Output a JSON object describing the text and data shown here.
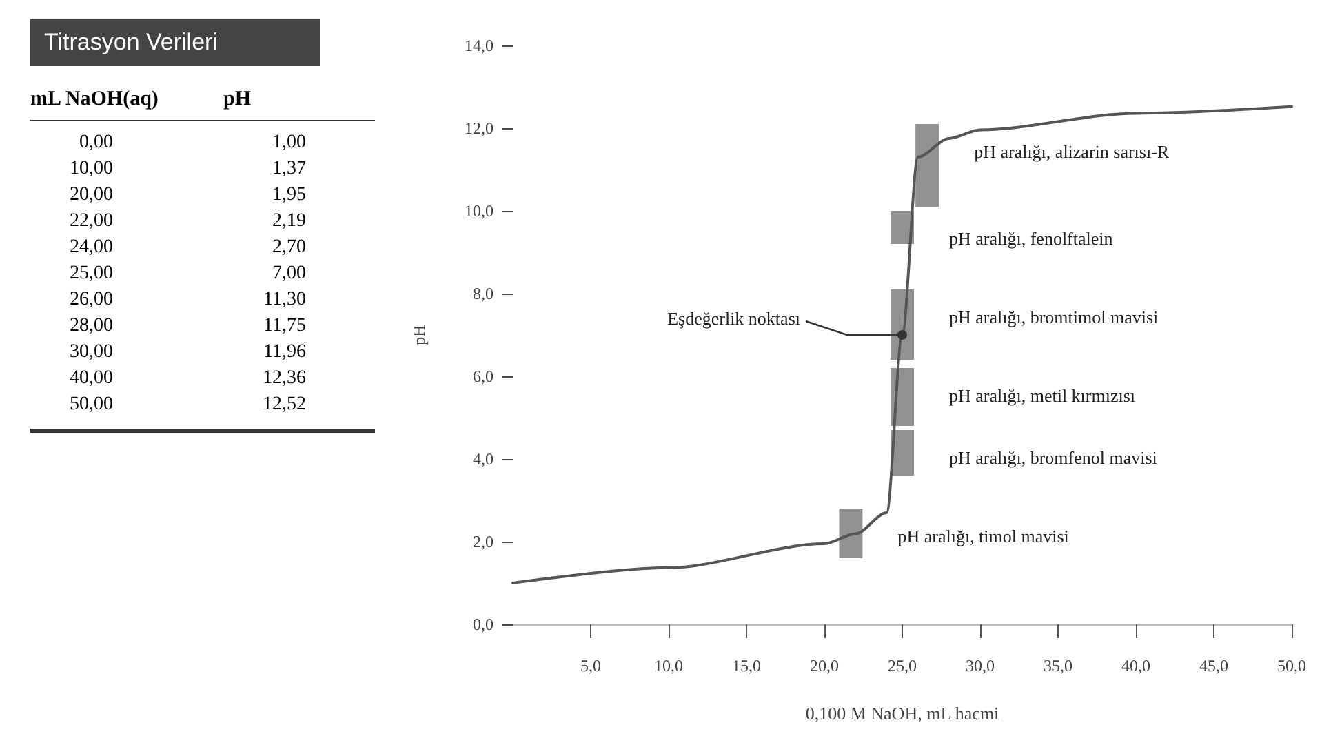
{
  "chart_data": [
    {
      "type": "other",
      "title": "Titrasyon Verileri",
      "annotations": [
        "mL NaOH(aq)",
        "pH",
        "0,00",
        "1,00",
        "10,00",
        "1,37",
        "20,00",
        "1,95",
        "22,00",
        "2,19",
        "24,00",
        "2,70",
        "25,00",
        "7,00",
        "26,00",
        "11,30",
        "28,00",
        "11,75",
        "30,00",
        "11,96",
        "40,00",
        "12,36",
        "50,00",
        "12,52"
      ]
    },
    {
      "type": "line",
      "xlabel": "0,100 M NaOH, mL hacmi",
      "ylabel": "pH",
      "x": [
        0,
        10,
        20,
        22,
        24,
        25,
        26,
        28,
        30,
        40,
        50
      ],
      "series": [
        {
          "color": "#555555",
          "values": [
            1.0,
            1.37,
            1.95,
            2.19,
            2.7,
            7.0,
            11.3,
            11.75,
            11.96,
            12.36,
            12.52
          ]
        },
        {
          "type": "bar",
          "color": "#6e6e6e",
          "x": [
            21.7
          ],
          "base": [
            1.6
          ],
          "values": [
            1.2
          ]
        },
        {
          "type": "bar",
          "color": "#6e6e6e",
          "x": [
            25.0
          ],
          "base": [
            3.6
          ],
          "values": [
            1.1
          ]
        },
        {
          "type": "bar",
          "color": "#6e6e6e",
          "x": [
            25.0
          ],
          "base": [
            4.8
          ],
          "values": [
            1.4
          ]
        },
        {
          "type": "bar",
          "color": "#6e6e6e",
          "x": [
            25.0
          ],
          "base": [
            6.4
          ],
          "values": [
            1.7
          ]
        },
        {
          "type": "bar",
          "color": "#6e6e6e",
          "x": [
            25.0
          ],
          "base": [
            9.2
          ],
          "values": [
            0.8
          ]
        },
        {
          "type": "bar",
          "color": "#6e6e6e",
          "x": [
            26.6
          ],
          "base": [
            10.1
          ],
          "values": [
            2.0
          ]
        }
      ],
      "xlim": [
        0,
        50
      ],
      "xticks": [
        {
          "value": 5,
          "label": "5,0"
        },
        {
          "value": 10,
          "label": "10,0"
        },
        {
          "value": 15,
          "label": "15,0"
        },
        {
          "value": 20,
          "label": "20,0"
        },
        {
          "value": 25,
          "label": "25,0"
        },
        {
          "value": 30,
          "label": "30,0"
        },
        {
          "value": 35,
          "label": "35,0"
        },
        {
          "value": 40,
          "label": "40,0"
        },
        {
          "value": 45,
          "label": "45,0"
        },
        {
          "value": 50,
          "label": "50,0"
        }
      ],
      "ylim": [
        0,
        14
      ],
      "yticks": [
        {
          "value": 0,
          "label": "0,0"
        },
        {
          "value": 2,
          "label": "2,0"
        },
        {
          "value": 4,
          "label": "4,0"
        },
        {
          "value": 6,
          "label": "6,0"
        },
        {
          "value": 8,
          "label": "8,0"
        },
        {
          "value": 10,
          "label": "10,0"
        },
        {
          "value": 12,
          "label": "12,0"
        },
        {
          "value": 14,
          "label": "14,0"
        }
      ],
      "annotations": [
        {
          "text": "Eşdeğerlik noktası",
          "x": 25,
          "y": 7
        },
        {
          "text": "pH aralığı, alizarin sarısı-R",
          "x": 26.6,
          "y": 12.1
        },
        {
          "text": "pH aralığı, fenolftalein",
          "x": 25.0,
          "y": 10.0
        },
        {
          "text": "pH aralığı, bromtimol mavisi",
          "x": 25.0,
          "y": 8.1
        },
        {
          "text": "pH aralığı, metil kırmızısı",
          "x": 25.0,
          "y": 6.2
        },
        {
          "text": "pH aralığı, bromfenol mavisi",
          "x": 25.0,
          "y": 4.7
        },
        {
          "text": "pH aralığı, timol mavisi",
          "x": 21.7,
          "y": 2.8
        }
      ],
      "marker": "none",
      "grid": false
    }
  ]
}
